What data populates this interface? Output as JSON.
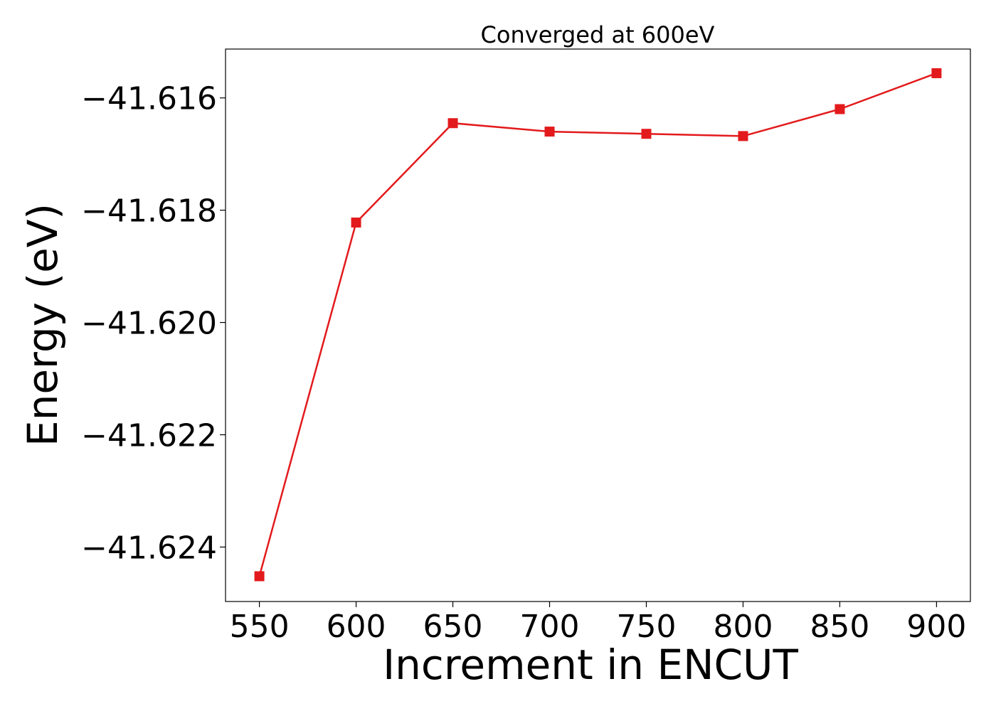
{
  "chart_data": {
    "type": "line",
    "title": "Converged at 600eV",
    "xlabel": "Increment in ENCUT",
    "ylabel": "Energy (eV)",
    "x": [
      550,
      600,
      650,
      700,
      750,
      800,
      850,
      900
    ],
    "xlim": [
      532.5,
      917.5
    ],
    "ylim": [
      -41.62497,
      -41.61513
    ],
    "xticks": [
      550,
      600,
      650,
      700,
      750,
      800,
      850,
      900
    ],
    "yticks": [
      -41.616,
      -41.618,
      -41.62,
      -41.622,
      -41.624
    ],
    "ytick_labels": [
      "−41.616",
      "−41.618",
      "−41.620",
      "−41.622",
      "−41.624"
    ],
    "grid": false,
    "series": [
      {
        "color": "#e31a1c",
        "marker": "square",
        "values": [
          -41.62452,
          -41.61822,
          -41.61645,
          -41.6166,
          -41.61664,
          -41.61668,
          -41.6162,
          -41.61556
        ]
      }
    ]
  }
}
